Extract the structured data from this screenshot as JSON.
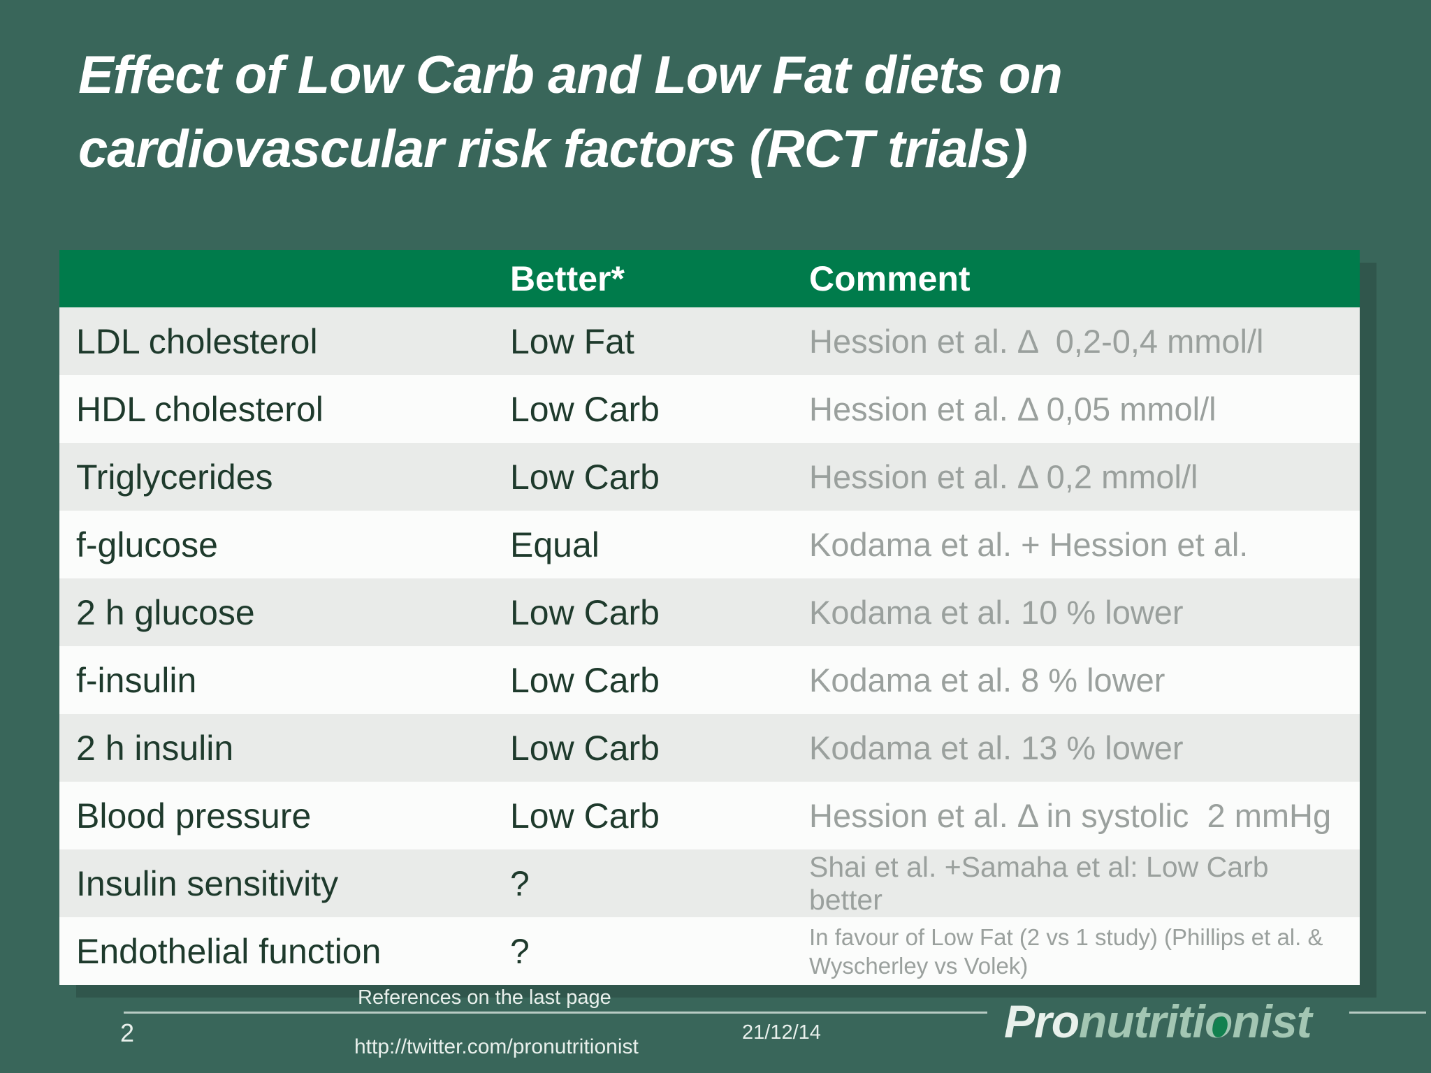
{
  "slide": {
    "title_line1": "Effect of Low Carb and Low Fat diets on",
    "title_line2": "cardiovascular risk factors (RCT trials)",
    "colors": {
      "background": "#39665a",
      "table_header_green": "#007b4b",
      "striped_row": "#e9ebe9",
      "plain_row": "#fbfcfb",
      "body_text": "#1e3a2c",
      "comment_text": "#9aa09d",
      "footer_text": "#e9f0ec",
      "logo_pro": "#e9f1ec",
      "logo_green": "#a3c6b3",
      "logo_o_fill": "#12804f"
    }
  },
  "table": {
    "headers": [
      "",
      "Better*",
      "Comment"
    ],
    "rows": [
      {
        "factor": "LDL cholesterol",
        "better": "Low Fat",
        "comment": "Hession et al. Δ  0,2-0,4 mmol/l"
      },
      {
        "factor": "HDL cholesterol",
        "better": "Low Carb",
        "comment": "Hession et al. Δ 0,05 mmol/l"
      },
      {
        "factor": "Triglycerides",
        "better": "Low Carb",
        "comment": "Hession et al. Δ 0,2 mmol/l"
      },
      {
        "factor": "f-glucose",
        "better": "Equal",
        "comment": "Kodama et al. + Hession et al."
      },
      {
        "factor": "2 h glucose",
        "better": "Low Carb",
        "comment": "Kodama et al. 10 % lower"
      },
      {
        "factor": "f-insulin",
        "better": "Low Carb",
        "comment": "Kodama et al. 8 % lower"
      },
      {
        "factor": "2 h insulin",
        "better": "Low Carb",
        "comment": "Kodama et al. 13 % lower"
      },
      {
        "factor": "Blood pressure",
        "better": "Low Carb",
        "comment": "Hession et al. Δ in systolic  2 mmHg"
      },
      {
        "factor": "Insulin sensitivity",
        "better": "?",
        "comment": "Shai et al. +Samaha et al: Low Carb better",
        "comment_size": "small"
      },
      {
        "factor": "Endothelial function",
        "better": "?",
        "comment": "In favour of Low Fat (2 vs 1 study) (Phillips et al. & Wyscherley vs Volek)",
        "comment_size": "xsmall"
      }
    ]
  },
  "footer": {
    "references_note": "References on the last page",
    "page_number": "2",
    "url": "http://twitter.com/pronutritionist",
    "date": "21/12/14",
    "logo": {
      "pro": "Pro",
      "mid": "nutriti",
      "o_char": "o",
      "tail": "nist"
    }
  }
}
